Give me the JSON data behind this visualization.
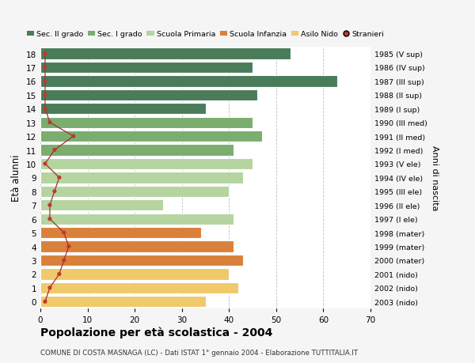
{
  "ages": [
    18,
    17,
    16,
    15,
    14,
    13,
    12,
    11,
    10,
    9,
    8,
    7,
    6,
    5,
    4,
    3,
    2,
    1,
    0
  ],
  "years": [
    "1985 (V sup)",
    "1986 (IV sup)",
    "1987 (III sup)",
    "1988 (II sup)",
    "1989 (I sup)",
    "1990 (III med)",
    "1991 (II med)",
    "1992 (I med)",
    "1993 (V ele)",
    "1994 (IV ele)",
    "1995 (III ele)",
    "1996 (II ele)",
    "1997 (I ele)",
    "1998 (mater)",
    "1999 (mater)",
    "2000 (mater)",
    "2001 (nido)",
    "2002 (nido)",
    "2003 (nido)"
  ],
  "bar_values": [
    53,
    45,
    63,
    46,
    35,
    45,
    47,
    41,
    45,
    43,
    40,
    26,
    41,
    34,
    41,
    43,
    40,
    42,
    35
  ],
  "bar_colors": [
    "#4a7c59",
    "#4a7c59",
    "#4a7c59",
    "#4a7c59",
    "#4a7c59",
    "#7aad6e",
    "#7aad6e",
    "#7aad6e",
    "#b5d4a0",
    "#b5d4a0",
    "#b5d4a0",
    "#b5d4a0",
    "#b5d4a0",
    "#d9813a",
    "#d9813a",
    "#d9813a",
    "#f0c96a",
    "#f0c96a",
    "#f0c96a"
  ],
  "stranieri_values": [
    1,
    1,
    1,
    1,
    1,
    2,
    7,
    3,
    1,
    4,
    3,
    2,
    2,
    5,
    6,
    5,
    4,
    2,
    1
  ],
  "legend_labels": [
    "Sec. II grado",
    "Sec. I grado",
    "Scuola Primaria",
    "Scuola Infanzia",
    "Asilo Nido",
    "Stranieri"
  ],
  "legend_colors": [
    "#4a7c59",
    "#7aad6e",
    "#b5d4a0",
    "#d9813a",
    "#f0c96a",
    "#c0392b"
  ],
  "ylabel": "Età alunni",
  "right_ylabel": "Anni di nascita",
  "title": "Popolazione per età scolastica - 2004",
  "subtitle": "COMUNE DI COSTA MASNAGA (LC) - Dati ISTAT 1° gennaio 2004 - Elaborazione TUTTITALIA.IT",
  "xlim": [
    0,
    70
  ],
  "background_color": "#f5f5f5",
  "plot_bg": "#ffffff"
}
